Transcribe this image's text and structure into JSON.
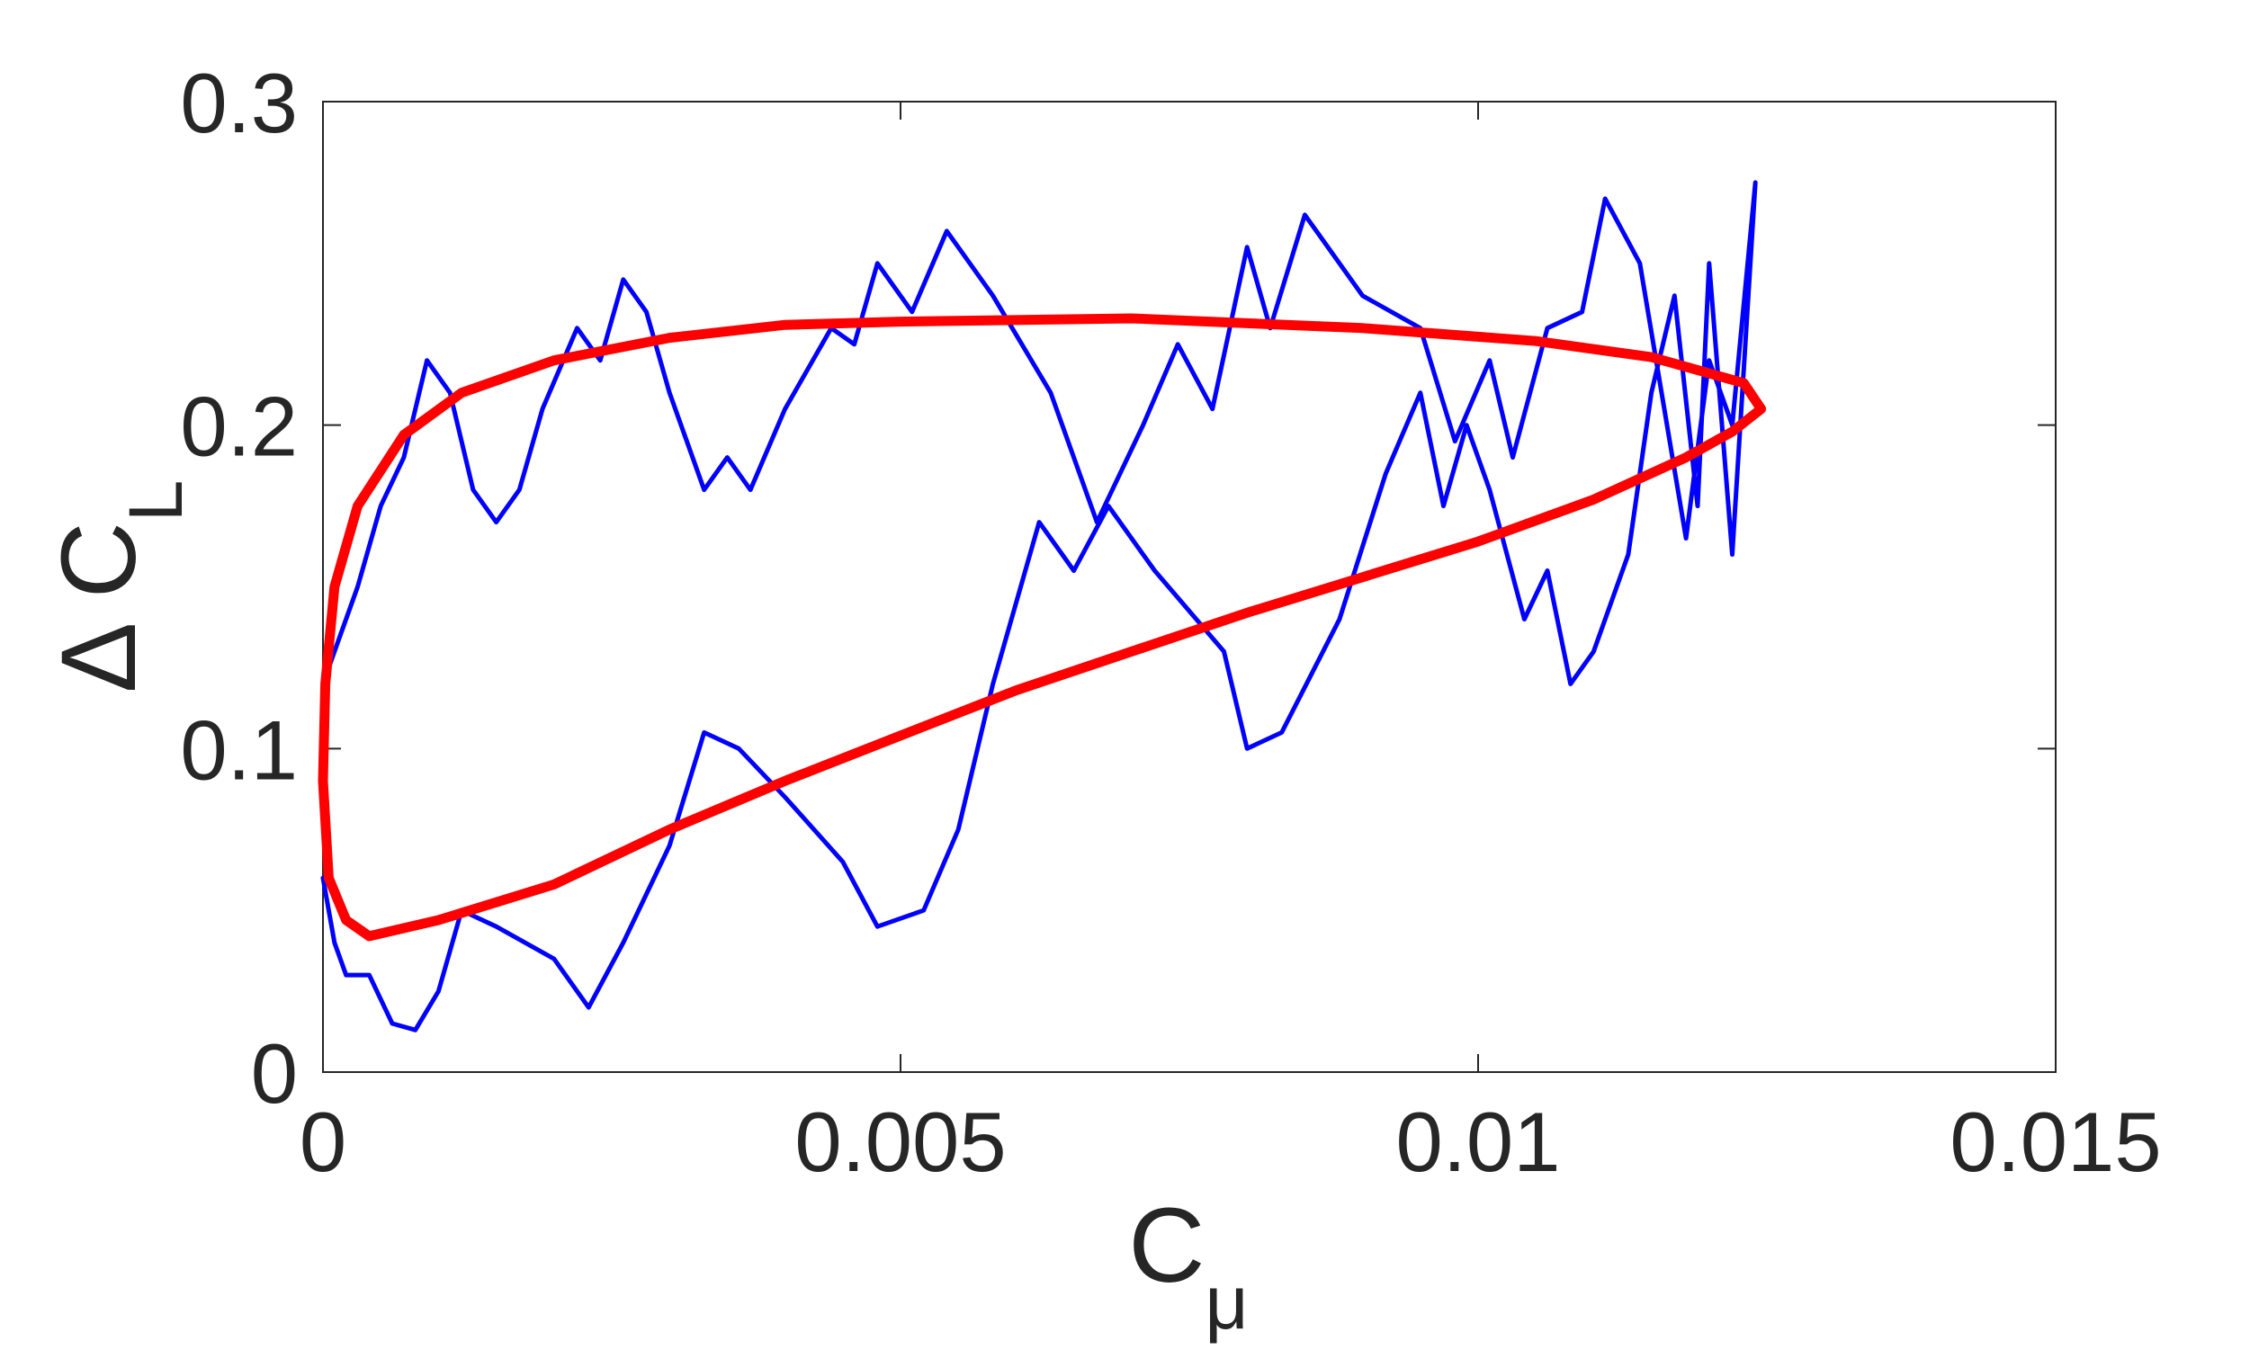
{
  "chart_data": {
    "type": "line",
    "xlabel": {
      "text": "C",
      "subscript": "μ"
    },
    "ylabel": {
      "text": "Δ C",
      "subscript": "L"
    },
    "xlim": [
      0,
      0.015
    ],
    "xticks": [
      0,
      0.005,
      0.01,
      0.015
    ],
    "ylim": [
      0,
      0.3
    ],
    "yticks": [
      0,
      0.1,
      0.2,
      0.3
    ],
    "grid": false,
    "series": [
      {
        "color": "#0000ff",
        "width": 5,
        "x": [
          0,
          0.0001,
          0.0002,
          0.0004,
          0.0006,
          0.0008,
          0.001,
          0.0012,
          0.0015,
          0.002,
          0.0023,
          0.0026,
          0.003,
          0.0033,
          0.0036,
          0.004,
          0.0045,
          0.0048,
          0.0052,
          0.0055,
          0.0058,
          0.0062,
          0.0065,
          0.0068,
          0.0072,
          0.0078,
          0.008,
          0.0083,
          0.0088,
          0.0092,
          0.0095,
          0.0097,
          0.0099,
          0.0101,
          0.0104,
          0.0106,
          0.0108,
          0.011,
          0.0113,
          0.0115,
          0.0117,
          0.0119,
          0.012,
          0.0122,
          0.0124,
          0.0122,
          0.012,
          0.0118,
          0.0114,
          0.0111,
          0.0109,
          0.0106,
          0.0103,
          0.0101,
          0.0098,
          0.0095,
          0.009,
          0.0085,
          0.0082,
          0.008,
          0.0077,
          0.0074,
          0.0071,
          0.0067,
          0.0063,
          0.0058,
          0.0054,
          0.0051,
          0.0048,
          0.0046,
          0.0044,
          0.004,
          0.0037,
          0.0035,
          0.0033,
          0.003,
          0.0028,
          0.0026,
          0.0024,
          0.0022,
          0.0019,
          0.0017,
          0.0015,
          0.0013,
          0.0011,
          0.0009,
          0.0007,
          0.0005,
          0.0003,
          0.0001,
          0
        ],
        "y": [
          0.06,
          0.04,
          0.03,
          0.03,
          0.015,
          0.013,
          0.025,
          0.05,
          0.045,
          0.035,
          0.02,
          0.04,
          0.07,
          0.105,
          0.1,
          0.085,
          0.065,
          0.045,
          0.05,
          0.075,
          0.12,
          0.17,
          0.155,
          0.175,
          0.155,
          0.13,
          0.1,
          0.105,
          0.14,
          0.185,
          0.21,
          0.175,
          0.2,
          0.18,
          0.14,
          0.155,
          0.12,
          0.13,
          0.16,
          0.21,
          0.24,
          0.175,
          0.25,
          0.16,
          0.275,
          0.2,
          0.22,
          0.165,
          0.25,
          0.27,
          0.235,
          0.23,
          0.19,
          0.22,
          0.195,
          0.23,
          0.24,
          0.265,
          0.23,
          0.255,
          0.205,
          0.225,
          0.2,
          0.17,
          0.21,
          0.24,
          0.26,
          0.235,
          0.25,
          0.225,
          0.23,
          0.205,
          0.18,
          0.19,
          0.18,
          0.21,
          0.235,
          0.245,
          0.22,
          0.23,
          0.205,
          0.18,
          0.17,
          0.18,
          0.21,
          0.22,
          0.19,
          0.175,
          0.15,
          0.13,
          0.12
        ]
      },
      {
        "color": "#ff0000",
        "width": 11,
        "x": [
          0.0004,
          0.001,
          0.002,
          0.003,
          0.004,
          0.005,
          0.006,
          0.007,
          0.008,
          0.009,
          0.01,
          0.011,
          0.0118,
          0.0122,
          0.01245,
          0.0123,
          0.0115,
          0.0105,
          0.009,
          0.007,
          0.005,
          0.004,
          0.003,
          0.002,
          0.0012,
          0.0007,
          0.0003,
          0.0001,
          2e-05,
          0,
          5e-05,
          0.0002,
          0.0004
        ],
        "y": [
          0.042,
          0.047,
          0.058,
          0.075,
          0.09,
          0.104,
          0.118,
          0.13,
          0.142,
          0.153,
          0.164,
          0.177,
          0.19,
          0.198,
          0.205,
          0.213,
          0.221,
          0.226,
          0.23,
          0.233,
          0.232,
          0.231,
          0.227,
          0.22,
          0.21,
          0.197,
          0.175,
          0.15,
          0.12,
          0.09,
          0.06,
          0.047,
          0.042
        ]
      }
    ]
  }
}
